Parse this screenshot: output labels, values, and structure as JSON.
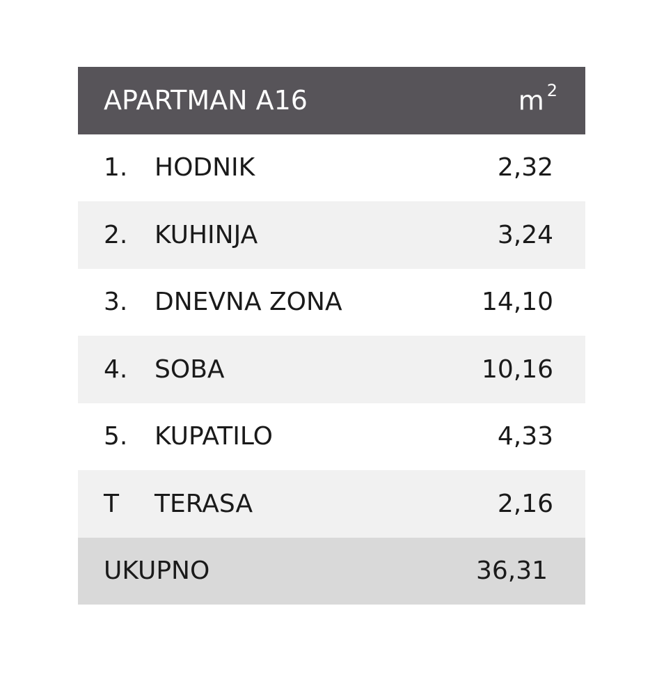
{
  "header": {
    "title": "APARTMAN A16",
    "unit": "m",
    "unit_exp": "2"
  },
  "rows": [
    {
      "num": "1.",
      "label": "HODNIK",
      "value": "2,32"
    },
    {
      "num": "2.",
      "label": "KUHINJA",
      "value": "3,24"
    },
    {
      "num": "3.",
      "label": "DNEVNA ZONA",
      "value": "14,10"
    },
    {
      "num": "4.",
      "label": "SOBA",
      "value": "10,16"
    },
    {
      "num": "5.",
      "label": "KUPATILO",
      "value": "4,33"
    },
    {
      "num": "T",
      "label": "TERASA",
      "value": "2,16"
    }
  ],
  "total": {
    "label": "UKUPNO",
    "value": "36,31"
  },
  "colors": {
    "header_bg": "#575459",
    "row_alt_bg": "#f1f1f1",
    "total_bg": "#d9d9d9"
  }
}
